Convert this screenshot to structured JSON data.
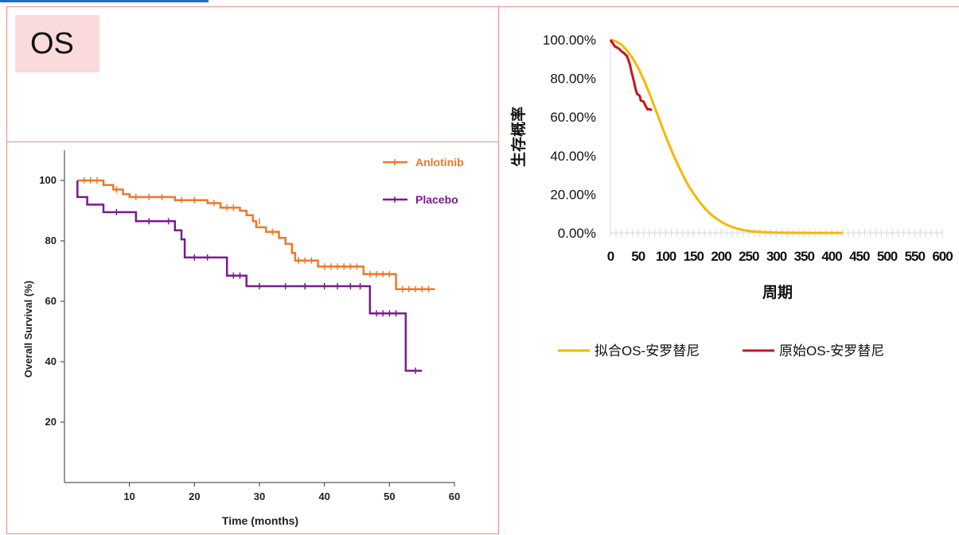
{
  "header": {
    "badge": "OS"
  },
  "colors": {
    "anlotinib": "#f0772b",
    "placebo": "#7b1a91",
    "fitted": "#f5b800",
    "original": "#c8141e",
    "panel_border": "#e8908e",
    "badge_bg": "#fadada"
  },
  "chart_data": [
    {
      "type": "line",
      "chart": "km-curve",
      "xlabel": "Time (months)",
      "ylabel": "Overall Survival (%)",
      "xlim": [
        0,
        60
      ],
      "ylim": [
        0,
        110
      ],
      "x_ticks": [
        10,
        20,
        30,
        40,
        50,
        60
      ],
      "y_ticks": [
        20,
        40,
        60,
        80,
        100
      ],
      "legend_position": "top-right",
      "grid": false,
      "series": [
        {
          "name": "Anlotinib",
          "step": true,
          "points": [
            [
              2,
              100
            ],
            [
              6,
              100
            ],
            [
              6,
              98.5
            ],
            [
              7.5,
              98.5
            ],
            [
              7.5,
              97
            ],
            [
              9,
              97
            ],
            [
              9,
              95.5
            ],
            [
              10,
              95.5
            ],
            [
              10,
              94.5
            ],
            [
              17,
              94.5
            ],
            [
              17,
              93.5
            ],
            [
              22,
              93.5
            ],
            [
              22,
              92.5
            ],
            [
              24,
              92.5
            ],
            [
              24,
              91
            ],
            [
              27,
              91
            ],
            [
              27,
              90
            ],
            [
              28,
              90
            ],
            [
              28,
              88.5
            ],
            [
              29,
              88.5
            ],
            [
              29,
              86.5
            ],
            [
              29.5,
              86.5
            ],
            [
              29.5,
              84.5
            ],
            [
              31,
              84.5
            ],
            [
              31,
              83
            ],
            [
              33,
              83
            ],
            [
              33,
              81
            ],
            [
              34,
              81
            ],
            [
              34,
              79
            ],
            [
              35,
              79
            ],
            [
              35,
              76
            ],
            [
              35.5,
              76
            ],
            [
              35.5,
              73.5
            ],
            [
              39,
              73.5
            ],
            [
              39,
              71.5
            ],
            [
              46,
              71.5
            ],
            [
              46,
              69
            ],
            [
              51,
              69
            ],
            [
              51,
              64
            ],
            [
              57,
              64
            ]
          ],
          "censors": [
            [
              3,
              100
            ],
            [
              4,
              100
            ],
            [
              5,
              100
            ],
            [
              8,
              97
            ],
            [
              11,
              94.5
            ],
            [
              13,
              94.5
            ],
            [
              15,
              94.5
            ],
            [
              18,
              93.5
            ],
            [
              20,
              93.5
            ],
            [
              23,
              92.5
            ],
            [
              25,
              91
            ],
            [
              26,
              91
            ],
            [
              30,
              86.5
            ],
            [
              32,
              83
            ],
            [
              36,
              73.5
            ],
            [
              37,
              73.5
            ],
            [
              38,
              73.5
            ],
            [
              40,
              71.5
            ],
            [
              41,
              71.5
            ],
            [
              42,
              71.5
            ],
            [
              43,
              71.5
            ],
            [
              44,
              71.5
            ],
            [
              45,
              71.5
            ],
            [
              47,
              69
            ],
            [
              48,
              69
            ],
            [
              49,
              69
            ],
            [
              50,
              69
            ],
            [
              52,
              64
            ],
            [
              53,
              64
            ],
            [
              54,
              64
            ],
            [
              55,
              64
            ],
            [
              56,
              64
            ]
          ]
        },
        {
          "name": "Placebo",
          "step": true,
          "points": [
            [
              2,
              100
            ],
            [
              2,
              94.5
            ],
            [
              3.5,
              94.5
            ],
            [
              3.5,
              92
            ],
            [
              6,
              92
            ],
            [
              6,
              89.5
            ],
            [
              11,
              89.5
            ],
            [
              11,
              86.5
            ],
            [
              17,
              86.5
            ],
            [
              17,
              83.5
            ],
            [
              18,
              83.5
            ],
            [
              18,
              80.5
            ],
            [
              18.5,
              80.5
            ],
            [
              18.5,
              74.5
            ],
            [
              25,
              74.5
            ],
            [
              25,
              68.5
            ],
            [
              28,
              68.5
            ],
            [
              28,
              65
            ],
            [
              47,
              65
            ],
            [
              47,
              56
            ],
            [
              52.5,
              56
            ],
            [
              52.5,
              37
            ],
            [
              55,
              37
            ]
          ],
          "censors": [
            [
              8,
              89.5
            ],
            [
              13,
              86.5
            ],
            [
              16,
              86.5
            ],
            [
              20,
              74.5
            ],
            [
              22,
              74.5
            ],
            [
              26,
              68.5
            ],
            [
              27,
              68.5
            ],
            [
              30,
              65
            ],
            [
              34,
              65
            ],
            [
              37,
              65
            ],
            [
              40,
              65
            ],
            [
              42,
              65
            ],
            [
              44,
              65
            ],
            [
              45.5,
              65
            ],
            [
              48,
              56
            ],
            [
              49,
              56
            ],
            [
              50,
              56
            ],
            [
              51,
              56
            ],
            [
              54,
              37
            ]
          ]
        }
      ]
    },
    {
      "type": "line",
      "chart": "fitted-survival",
      "xlabel": "周期",
      "ylabel": "生存概率",
      "xlim": [
        0,
        600
      ],
      "ylim": [
        0,
        100
      ],
      "x_ticks": [
        0,
        50,
        100,
        150,
        200,
        250,
        300,
        350,
        400,
        450,
        500,
        550,
        600
      ],
      "y_tick_labels": [
        "0.00%",
        "20.00%",
        "40.00%",
        "60.00%",
        "80.00%",
        "100.00%"
      ],
      "y_ticks": [
        0,
        20,
        40,
        60,
        80,
        100
      ],
      "legend_position": "bottom",
      "grid": false,
      "series": [
        {
          "name": "拟合OS-安罗替尼",
          "points": [
            [
              0,
              100
            ],
            [
              10,
              99.2
            ],
            [
              20,
              97.5
            ],
            [
              30,
              94.5
            ],
            [
              40,
              90.5
            ],
            [
              50,
              85.5
            ],
            [
              60,
              79.5
            ],
            [
              70,
              72.5
            ],
            [
              80,
              65
            ],
            [
              90,
              57.5
            ],
            [
              100,
              50
            ],
            [
              110,
              43
            ],
            [
              120,
              36.5
            ],
            [
              130,
              30.5
            ],
            [
              140,
              25
            ],
            [
              150,
              20.5
            ],
            [
              160,
              16.5
            ],
            [
              170,
              13
            ],
            [
              180,
              10
            ],
            [
              190,
              7.7
            ],
            [
              200,
              5.8
            ],
            [
              210,
              4.3
            ],
            [
              220,
              3.1
            ],
            [
              230,
              2.2
            ],
            [
              240,
              1.5
            ],
            [
              250,
              1.0
            ],
            [
              265,
              0.6
            ],
            [
              280,
              0.35
            ],
            [
              300,
              0.15
            ],
            [
              330,
              0.05
            ],
            [
              370,
              0.01
            ],
            [
              420,
              0
            ]
          ]
        },
        {
          "name": "原始OS-安罗替尼",
          "points": [
            [
              0,
              100
            ],
            [
              8,
              96.5
            ],
            [
              15,
              95.5
            ],
            [
              20,
              94
            ],
            [
              25,
              93
            ],
            [
              30,
              91.5
            ],
            [
              35,
              87.5
            ],
            [
              38,
              83.5
            ],
            [
              42,
              79
            ],
            [
              45,
              75
            ],
            [
              48,
              72
            ],
            [
              53,
              71
            ],
            [
              55,
              68.5
            ],
            [
              60,
              68
            ],
            [
              63,
              66
            ],
            [
              67,
              64
            ],
            [
              72,
              64
            ],
            [
              75,
              63.5
            ]
          ]
        }
      ]
    }
  ]
}
